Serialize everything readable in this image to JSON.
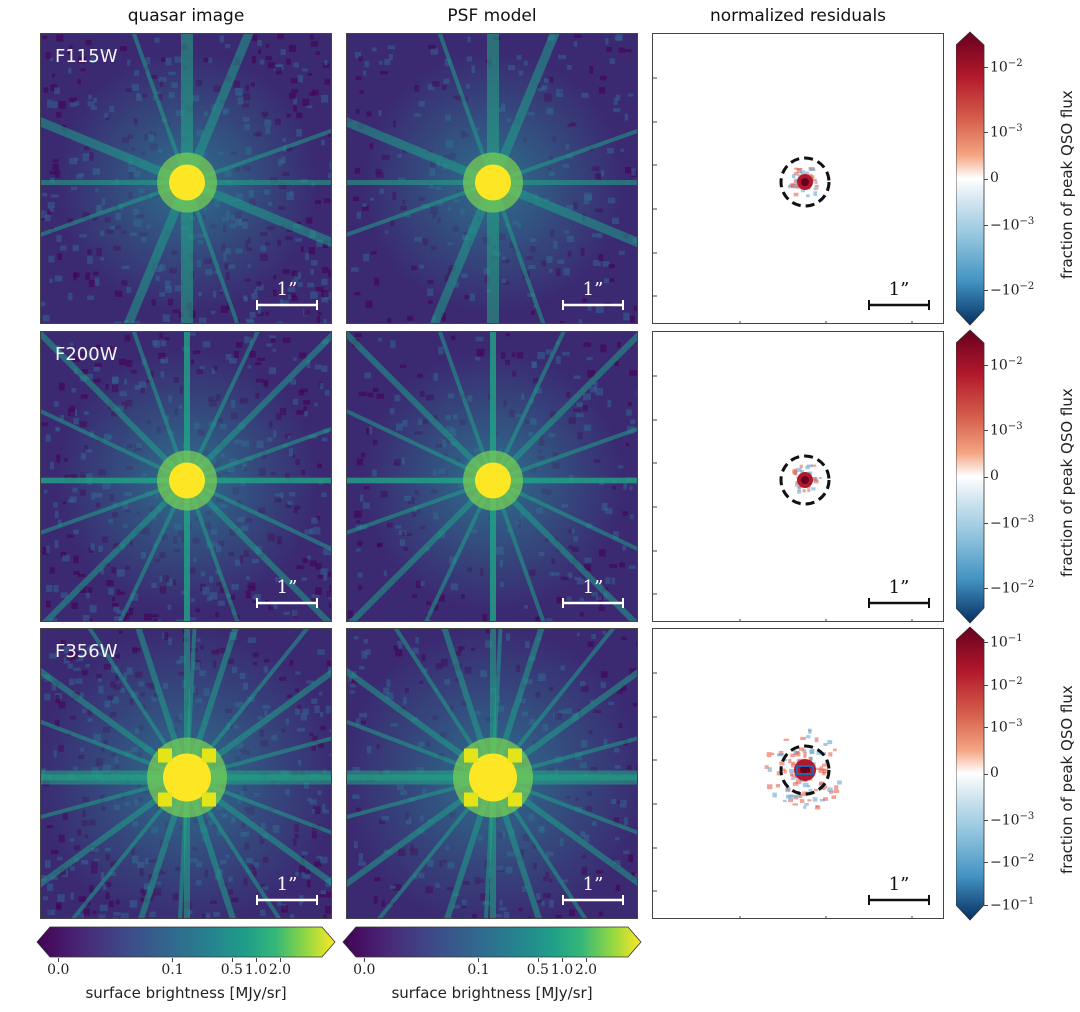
{
  "chart_data": {
    "type": "heatmap",
    "columns": [
      "quasar image",
      "PSF model",
      "normalized residuals"
    ],
    "rows": [
      "F115W",
      "F200W",
      "F356W"
    ],
    "scale_bar_label": "1”",
    "brightness_colorbar": {
      "label": "surface brightness [MJy/sr]",
      "ticks": [
        "0.0",
        "0.1",
        "0.5",
        "1.0",
        "2.0"
      ],
      "tick_values": [
        0.0,
        0.1,
        0.5,
        1.0,
        2.0
      ],
      "colormap": "viridis",
      "extend": "both"
    },
    "residual_colorbars": [
      {
        "label": "fraction of peak QSO flux",
        "ticks": [
          "10^-2",
          "10^-3",
          "0",
          "−10^-3",
          "−10^-2"
        ],
        "tick_values": [
          0.01,
          0.001,
          0,
          -0.001,
          -0.01
        ],
        "range": [
          -0.02,
          0.02
        ],
        "colormap": "RdBu_r",
        "extend": "both"
      },
      {
        "label": "fraction of peak QSO flux",
        "ticks": [
          "10^-2",
          "10^-3",
          "0",
          "−10^-3",
          "−10^-2"
        ],
        "tick_values": [
          0.01,
          0.001,
          0,
          -0.001,
          -0.01
        ],
        "range": [
          -0.02,
          0.02
        ],
        "colormap": "RdBu_r",
        "extend": "both"
      },
      {
        "label": "fraction of peak QSO flux",
        "ticks": [
          "10^-1",
          "10^-2",
          "10^-3",
          "0",
          "−10^-3",
          "−10^-2",
          "−10^-1"
        ],
        "tick_values": [
          0.1,
          0.01,
          0.001,
          0,
          -0.001,
          -0.01,
          -0.1
        ],
        "range": [
          -0.1,
          0.1
        ],
        "colormap": "RdBu_r",
        "extend": "both"
      }
    ]
  },
  "colors": {
    "viridis_dark": "#440154",
    "viridis_mid": "#21918c",
    "viridis_yellow": "#fde725",
    "red_dark": "#67001f",
    "blue_dark": "#053061"
  }
}
